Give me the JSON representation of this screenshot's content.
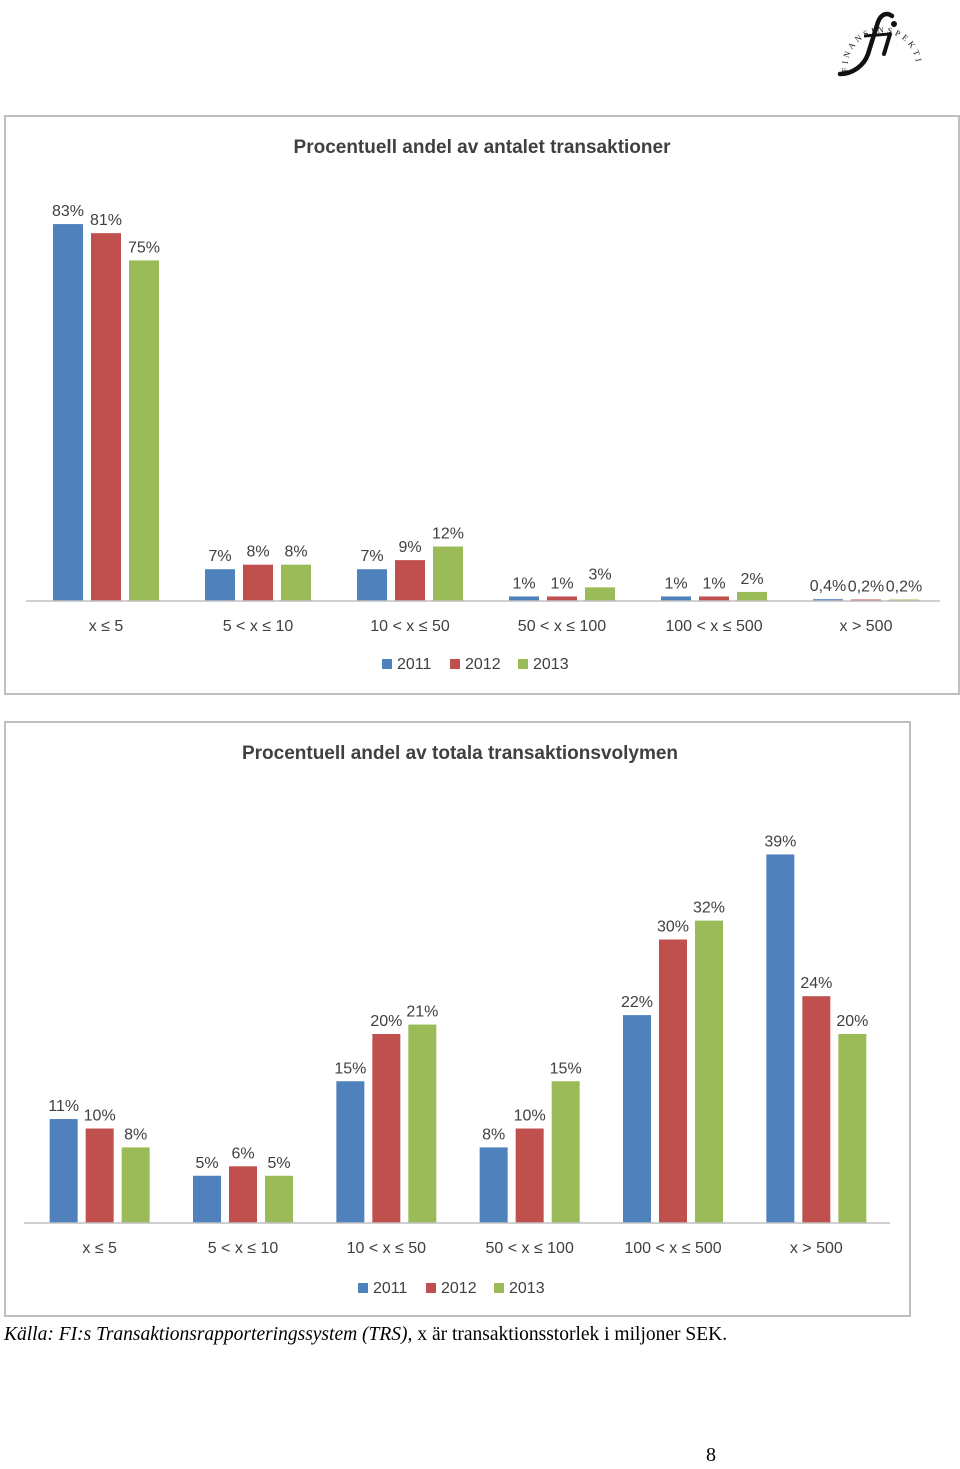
{
  "logo": {
    "arc_text": "FINANSINSPEKTIONEN",
    "monogram": "fi"
  },
  "chart_data": [
    {
      "type": "bar",
      "title": "Procentuell andel av antalet transaktioner",
      "categories": [
        "x ≤ 5",
        "5 < x ≤ 10",
        "10 < x ≤ 50",
        "50 < x ≤ 100",
        "100 < x ≤ 500",
        "x > 500"
      ],
      "series": [
        {
          "name": "2011",
          "color": "#4f81bd",
          "values": [
            83,
            7,
            7,
            1,
            1,
            0.4
          ],
          "labels": [
            "83%",
            "7%",
            "7%",
            "1%",
            "1%",
            "0,4%"
          ]
        },
        {
          "name": "2012",
          "color": "#c0504d",
          "values": [
            81,
            8,
            9,
            1,
            1,
            0.2
          ],
          "labels": [
            "81%",
            "8%",
            "9%",
            "1%",
            "1%",
            "0,2%"
          ]
        },
        {
          "name": "2013",
          "color": "#9bbb59",
          "values": [
            75,
            8,
            12,
            3,
            2,
            0.2
          ],
          "labels": [
            "75%",
            "8%",
            "12%",
            "3%",
            "2%",
            "0,2%"
          ]
        }
      ],
      "ylim": [
        0,
        85
      ],
      "grid": false,
      "legend": "bottom"
    },
    {
      "type": "bar",
      "title": "Procentuell andel av totala transaktionsvolymen",
      "categories": [
        "x ≤ 5",
        "5 < x ≤ 10",
        "10 < x ≤ 50",
        "50 < x ≤ 100",
        "100 < x ≤ 500",
        "x > 500"
      ],
      "series": [
        {
          "name": "2011",
          "color": "#4f81bd",
          "values": [
            11,
            5,
            15,
            8,
            22,
            39
          ],
          "labels": [
            "11%",
            "5%",
            "15%",
            "8%",
            "22%",
            "39%"
          ]
        },
        {
          "name": "2012",
          "color": "#c0504d",
          "values": [
            10,
            6,
            20,
            10,
            30,
            24
          ],
          "labels": [
            "10%",
            "6%",
            "20%",
            "10%",
            "30%",
            "24%"
          ]
        },
        {
          "name": "2013",
          "color": "#9bbb59",
          "values": [
            8,
            5,
            21,
            15,
            32,
            20
          ],
          "labels": [
            "8%",
            "5%",
            "21%",
            "15%",
            "32%",
            "20%"
          ]
        }
      ],
      "ylim": [
        0,
        40
      ],
      "grid": false,
      "legend": "bottom"
    }
  ],
  "caption": {
    "source_italic": "Källa: FI:s Transaktionsrapporteringssystem (TRS),",
    "rest": " x är transaktionsstorlek i miljoner SEK."
  },
  "page_number": "8"
}
